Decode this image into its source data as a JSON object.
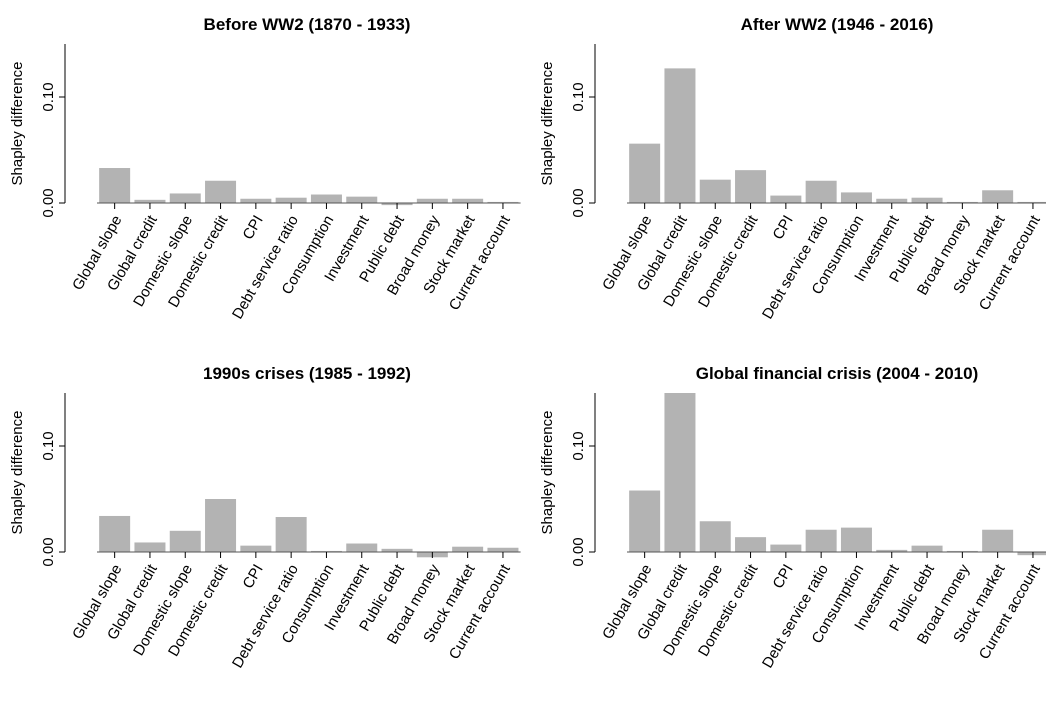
{
  "chart_data": [
    {
      "type": "bar",
      "title": "Before WW2 (1870 - 1933)",
      "y_label": "Shapley difference",
      "categories": [
        "Global slope",
        "Global credit",
        "Domestic slope",
        "Domestic credit",
        "CPI",
        "Debt service ratio",
        "Consumption",
        "Investment",
        "Public debt",
        "Broad money",
        "Stock market",
        "Current account"
      ],
      "values": [
        0.033,
        0.003,
        0.009,
        0.021,
        0.004,
        0.005,
        0.008,
        0.006,
        -0.002,
        0.004,
        0.004,
        0.001
      ],
      "color": "#b3b3b3",
      "ylim": [
        0,
        0.15
      ],
      "yticks": [
        {
          "value": 0,
          "label": "0.00"
        },
        {
          "value": 0.1,
          "label": "0.10"
        }
      ]
    },
    {
      "type": "bar",
      "title": "After WW2 (1946 - 2016)",
      "y_label": "Shapley difference",
      "categories": [
        "Global slope",
        "Global credit",
        "Domestic slope",
        "Domestic credit",
        "CPI",
        "Debt service ratio",
        "Consumption",
        "Investment",
        "Public debt",
        "Broad money",
        "Stock market",
        "Current account"
      ],
      "values": [
        0.056,
        0.127,
        0.022,
        0.031,
        0.007,
        0.021,
        0.01,
        0.004,
        0.005,
        0.001,
        0.012,
        0.001
      ],
      "color": "#b3b3b3",
      "ylim": [
        0,
        0.15
      ],
      "yticks": [
        {
          "value": 0,
          "label": "0.00"
        },
        {
          "value": 0.1,
          "label": "0.10"
        }
      ]
    },
    {
      "type": "bar",
      "title": "1990s crises (1985 - 1992)",
      "y_label": "Shapley difference",
      "categories": [
        "Global slope",
        "Global credit",
        "Domestic slope",
        "Domestic credit",
        "CPI",
        "Debt service ratio",
        "Consumption",
        "Investment",
        "Public debt",
        "Broad money",
        "Stock market",
        "Current account"
      ],
      "values": [
        0.034,
        0.009,
        0.02,
        0.05,
        0.006,
        0.033,
        0.001,
        0.008,
        0.003,
        -0.005,
        0.005,
        0.004
      ],
      "color": "#b3b3b3",
      "ylim": [
        0,
        0.15
      ],
      "yticks": [
        {
          "value": 0,
          "label": "0.00"
        },
        {
          "value": 0.1,
          "label": "0.10"
        }
      ]
    },
    {
      "type": "bar",
      "title": "Global financial crisis (2004 - 2010)",
      "y_label": "Shapley difference",
      "categories": [
        "Global slope",
        "Global credit",
        "Domestic slope",
        "Domestic credit",
        "CPI",
        "Debt service ratio",
        "Consumption",
        "Investment",
        "Public debt",
        "Broad money",
        "Stock market",
        "Current account"
      ],
      "values": [
        0.058,
        0.15,
        0.029,
        0.014,
        0.007,
        0.021,
        0.023,
        0.002,
        0.006,
        0.001,
        0.021,
        -0.003
      ],
      "color": "#b3b3b3",
      "ylim": [
        0,
        0.15
      ],
      "yticks": [
        {
          "value": 0,
          "label": "0.00"
        },
        {
          "value": 0.1,
          "label": "0.10"
        }
      ]
    }
  ]
}
